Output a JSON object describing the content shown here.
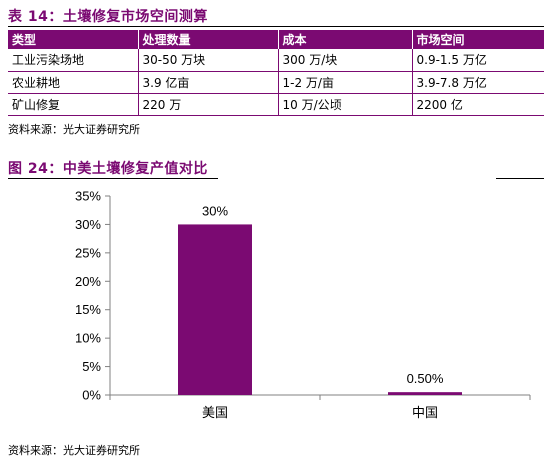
{
  "table_section": {
    "title": "表 14：土壤修复市场空间测算",
    "headers": [
      "类型",
      "处理数量",
      "成本",
      "市场空间"
    ],
    "rows": [
      [
        "工业污染场地",
        "30-50 万块",
        "300 万/块",
        "0.9-1.5 万亿"
      ],
      [
        "农业耕地",
        "3.9 亿亩",
        "1-2 万/亩",
        "3.9-7.8 万亿"
      ],
      [
        "矿山修复",
        "220 万",
        "10 万/公顷",
        "2200 亿"
      ]
    ],
    "source": "资料来源：光大证券研究所"
  },
  "chart_section": {
    "title": "图 24：中美土壤修复产值对比",
    "source": "资料来源：光大证券研究所"
  },
  "colors": {
    "accent": "#7b0a72"
  },
  "chart_data": {
    "type": "bar",
    "title": "",
    "categories": [
      "美国",
      "中国"
    ],
    "values": [
      30,
      0.5
    ],
    "data_labels": [
      "30%",
      "0.50%"
    ],
    "ylim": [
      0,
      35
    ],
    "yticks": [
      0,
      5,
      10,
      15,
      20,
      25,
      30,
      35
    ],
    "ytick_labels": [
      "0%",
      "5%",
      "10%",
      "15%",
      "20%",
      "25%",
      "30%",
      "35%"
    ],
    "xlabel": "",
    "ylabel": "",
    "grid": false,
    "color": "#7b0a72"
  }
}
